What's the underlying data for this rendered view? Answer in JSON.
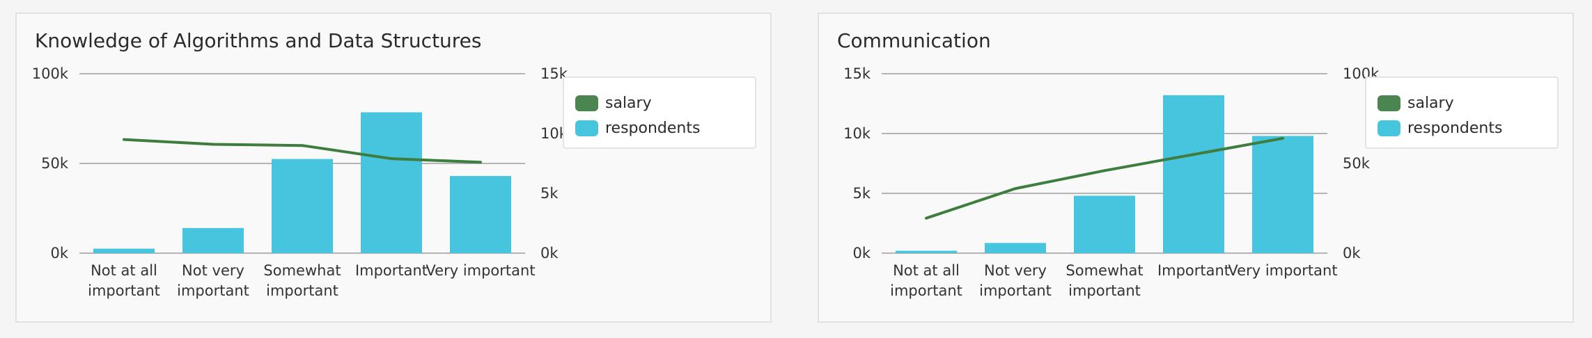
{
  "colors": {
    "salary": "#3d7d3d",
    "respondents": "#48c5de",
    "grid": "#9e9e9e"
  },
  "legend": [
    {
      "label": "salary",
      "color": "#4b8552"
    },
    {
      "label": "respondents",
      "color": "#48c5de"
    }
  ],
  "chart_data": [
    {
      "type": "bar",
      "title": "Knowledge of Algorithms and Data Structures",
      "categories": [
        [
          "Not at all",
          "important"
        ],
        [
          "Not very",
          "important"
        ],
        [
          "Somewhat",
          "important"
        ],
        [
          "Important"
        ],
        [
          "Very important"
        ]
      ],
      "series": [
        {
          "name": "respondents",
          "type": "bar",
          "axis": "left",
          "values": [
            2500,
            14000,
            52500,
            78500,
            43000
          ]
        },
        {
          "name": "salary",
          "type": "line",
          "axis": "right",
          "values": [
            9500,
            9100,
            9000,
            7900,
            7600
          ]
        }
      ],
      "left_axis": {
        "ticks": [
          "100k",
          "50k",
          "0k"
        ],
        "tick_values": [
          100000,
          50000,
          0
        ],
        "ylim": [
          0,
          100000
        ]
      },
      "right_axis": {
        "ticks": [
          "15k",
          "10k",
          "5k",
          "0k"
        ],
        "tick_values": [
          15000,
          10000,
          5000,
          0
        ],
        "ylim": [
          0,
          15000
        ]
      },
      "legend_position": "right"
    },
    {
      "type": "bar",
      "title": "Communication",
      "categories": [
        [
          "Not at all",
          "important"
        ],
        [
          "Not very",
          "important"
        ],
        [
          "Somewhat",
          "important"
        ],
        [
          "Important"
        ],
        [
          "Very important"
        ]
      ],
      "series": [
        {
          "name": "respondents",
          "type": "bar",
          "axis": "left",
          "values": [
            200,
            850,
            4800,
            13200,
            9800
          ]
        },
        {
          "name": "salary",
          "type": "line",
          "axis": "right",
          "values": [
            19500,
            36000,
            46000,
            55000,
            64000
          ]
        }
      ],
      "left_axis": {
        "ticks": [
          "15k",
          "10k",
          "5k",
          "0k"
        ],
        "tick_values": [
          15000,
          10000,
          5000,
          0
        ],
        "ylim": [
          0,
          15000
        ]
      },
      "right_axis": {
        "ticks": [
          "100k",
          "50k",
          "0k"
        ],
        "tick_values": [
          100000,
          50000,
          0
        ],
        "ylim": [
          0,
          100000
        ]
      },
      "legend_position": "right"
    }
  ]
}
